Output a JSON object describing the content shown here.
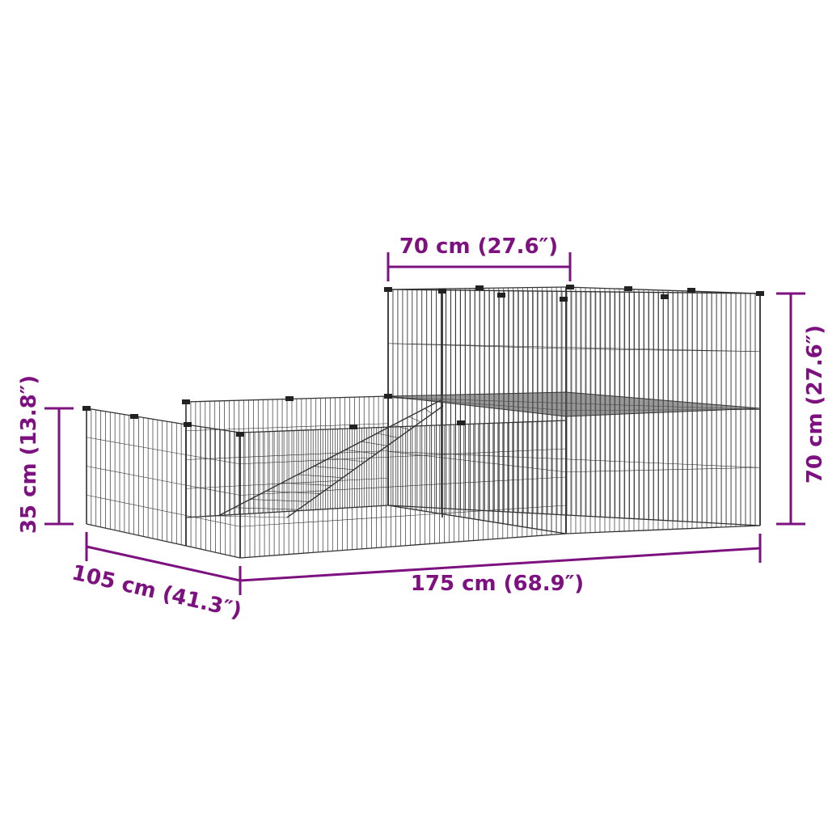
{
  "colors": {
    "dimension": "#7e1180",
    "cage": "#333333"
  },
  "dimensions": {
    "top_width": "70 cm (27.6″)",
    "tall_height": "70 cm (27.6″)",
    "low_height": "35 cm (13.8″)",
    "depth": "105 cm (41.3″)",
    "length": "175 cm (68.9″)"
  }
}
